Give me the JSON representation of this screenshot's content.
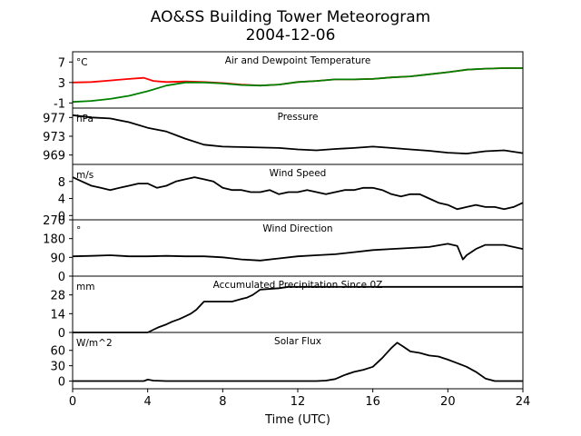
{
  "figure": {
    "title_line1": "AO&SS Building Tower Meteorogram",
    "title_line2": "2004-12-06",
    "xlabel": "Time (UTC)"
  },
  "chart_data": [
    {
      "type": "line",
      "title": "Air and Dewpoint Temperature",
      "unit": "°C",
      "xlim": [
        0,
        24
      ],
      "ylim": [
        -2,
        9
      ],
      "yticks": [
        -1,
        3,
        7
      ],
      "series": [
        {
          "color": "#ff0000",
          "x": [
            0,
            1,
            2,
            3,
            3.8,
            4.3,
            5,
            6,
            7,
            8,
            9,
            10,
            11,
            12,
            13,
            14,
            15,
            16,
            17,
            18,
            19,
            20,
            20.6,
            21,
            22,
            23,
            24
          ],
          "y": [
            3.0,
            3.1,
            3.4,
            3.7,
            3.9,
            3.3,
            3.1,
            3.2,
            3.1,
            2.9,
            2.6,
            2.4,
            2.6,
            3.1,
            3.3,
            3.6,
            3.6,
            3.7,
            4.0,
            4.2,
            4.6,
            5.0,
            5.3,
            5.5,
            5.7,
            5.8,
            5.8
          ]
        },
        {
          "color": "#008000",
          "x": [
            0,
            1,
            2,
            3,
            4,
            5,
            6,
            7,
            8,
            9,
            10,
            11,
            12,
            13,
            14,
            15,
            16,
            17,
            18,
            19,
            20,
            20.6,
            21,
            22,
            23,
            24
          ],
          "y": [
            -0.8,
            -0.6,
            -0.2,
            0.4,
            1.3,
            2.4,
            3.0,
            3.0,
            2.8,
            2.5,
            2.4,
            2.6,
            3.1,
            3.3,
            3.6,
            3.6,
            3.7,
            4.0,
            4.2,
            4.6,
            5.0,
            5.3,
            5.5,
            5.7,
            5.8,
            5.8
          ]
        }
      ]
    },
    {
      "type": "line",
      "title": "Pressure",
      "unit": "hPa",
      "xlim": [
        0,
        24
      ],
      "ylim": [
        967,
        979
      ],
      "yticks": [
        969,
        973,
        977
      ],
      "series": [
        {
          "color": "#000000",
          "x": [
            0,
            1,
            2,
            3,
            4,
            5,
            6,
            7,
            8,
            9,
            10,
            11,
            12,
            13,
            14,
            15,
            16,
            17,
            18,
            19,
            20,
            21,
            22,
            23,
            24
          ],
          "y": [
            977.5,
            977.0,
            976.8,
            976.0,
            974.8,
            974.0,
            972.5,
            971.2,
            970.8,
            970.7,
            970.6,
            970.5,
            970.2,
            970.0,
            970.3,
            970.5,
            970.8,
            970.5,
            970.2,
            969.9,
            969.5,
            969.3,
            969.8,
            970.0,
            969.4
          ]
        }
      ]
    },
    {
      "type": "line",
      "title": "Wind Speed",
      "unit": "m/s",
      "xlim": [
        0,
        24
      ],
      "ylim": [
        -1,
        12
      ],
      "yticks": [
        0,
        4,
        8
      ],
      "series": [
        {
          "color": "#000000",
          "x": [
            0,
            0.5,
            1,
            1.5,
            2,
            2.5,
            3,
            3.5,
            4,
            4.5,
            5,
            5.5,
            6,
            6.5,
            7,
            7.5,
            8,
            8.5,
            9,
            9.5,
            10,
            10.5,
            11,
            11.5,
            12,
            12.5,
            13,
            13.5,
            14,
            14.5,
            15,
            15.5,
            16,
            16.5,
            17,
            17.5,
            18,
            18.5,
            19,
            19.5,
            20,
            20.5,
            21,
            21.5,
            22,
            22.5,
            23,
            23.5,
            24
          ],
          "y": [
            9,
            8,
            7,
            6.5,
            6,
            6.5,
            7,
            7.5,
            7.5,
            6.5,
            7,
            8,
            8.5,
            9,
            8.5,
            8,
            6.5,
            6,
            6,
            5.5,
            5.5,
            6,
            5,
            5.5,
            5.5,
            6,
            5.5,
            5,
            5.5,
            6,
            6,
            6.5,
            6.5,
            6,
            5,
            4.5,
            5,
            5,
            4,
            3,
            2.5,
            1.5,
            2,
            2.5,
            2,
            2,
            1.5,
            2,
            3
          ]
        }
      ]
    },
    {
      "type": "line",
      "title": "Wind Direction",
      "unit": "°",
      "xlim": [
        0,
        24
      ],
      "ylim": [
        0,
        270
      ],
      "yticks": [
        0,
        90,
        180,
        270
      ],
      "series": [
        {
          "color": "#000000",
          "x": [
            0,
            1,
            2,
            3,
            4,
            5,
            6,
            7,
            8,
            9,
            10,
            11,
            12,
            13,
            14,
            15,
            16,
            17,
            18,
            19,
            20,
            20.5,
            20.8,
            21,
            21.5,
            22,
            23,
            24
          ],
          "y": [
            95,
            97,
            100,
            95,
            95,
            97,
            95,
            95,
            90,
            80,
            75,
            85,
            95,
            100,
            105,
            115,
            125,
            130,
            135,
            140,
            155,
            145,
            80,
            100,
            130,
            150,
            150,
            130
          ]
        }
      ]
    },
    {
      "type": "line",
      "title": "Accumulated Precipitation Since 0Z",
      "unit": "mm",
      "xlim": [
        0,
        24
      ],
      "ylim": [
        0,
        42
      ],
      "yticks": [
        0,
        14,
        28
      ],
      "series": [
        {
          "color": "#000000",
          "x": [
            0,
            4,
            4.3,
            4.6,
            5,
            5.3,
            5.7,
            6,
            6.3,
            6.6,
            7,
            7.5,
            8,
            8.5,
            9,
            9.3,
            9.6,
            10,
            11,
            11.5,
            12,
            24
          ],
          "y": [
            0,
            0,
            2,
            4,
            6,
            8,
            10,
            12,
            14,
            17,
            23,
            23,
            23,
            23,
            25,
            26,
            28,
            32,
            33,
            34,
            34,
            34
          ]
        }
      ]
    },
    {
      "type": "line",
      "title": "Solar Flux",
      "unit": "W/m^2",
      "xlim": [
        0,
        24
      ],
      "ylim": [
        -15,
        95
      ],
      "yticks": [
        0,
        30,
        60
      ],
      "series": [
        {
          "color": "#000000",
          "x": [
            0,
            3.8,
            4,
            4.3,
            5,
            8,
            12,
            13,
            13.5,
            14,
            14.5,
            15,
            15.5,
            16,
            16.5,
            17,
            17.3,
            17.6,
            18,
            18.5,
            19,
            19.5,
            20,
            20.5,
            21,
            21.5,
            22,
            22.5,
            23,
            24
          ],
          "y": [
            0,
            0,
            3,
            1,
            0,
            0,
            0,
            0,
            1,
            4,
            12,
            18,
            22,
            28,
            45,
            65,
            75,
            68,
            58,
            55,
            50,
            48,
            42,
            35,
            28,
            18,
            5,
            0,
            0,
            0
          ]
        }
      ]
    }
  ],
  "xaxis": {
    "ticks": [
      0,
      4,
      8,
      12,
      16,
      20,
      24
    ]
  }
}
